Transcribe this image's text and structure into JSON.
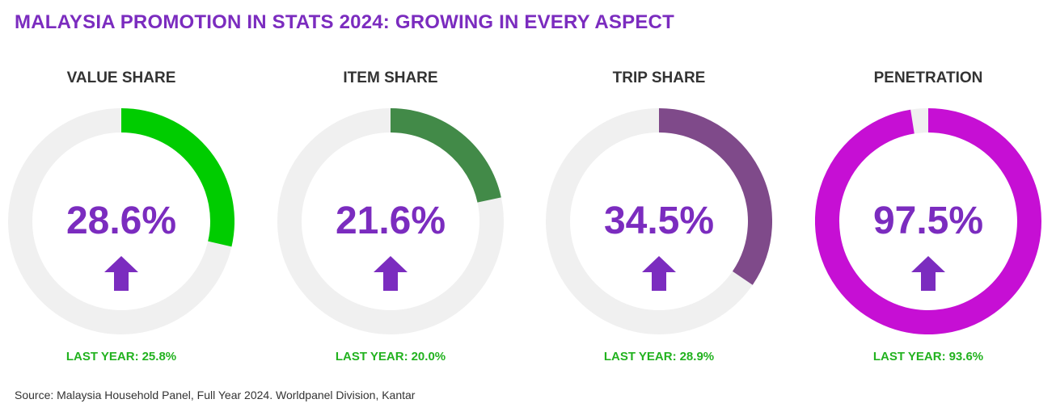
{
  "title": "MALAYSIA PROMOTION IN STATS 2024: GROWING IN EVERY ASPECT",
  "source": "Source: Malaysia Household Panel, Full Year 2024. Worldpanel Division, Kantar",
  "colors": {
    "title": "#7b2cbf",
    "value_text": "#7b2cbf",
    "arrow": "#7b2cbf",
    "last_year_text": "#22b21f",
    "track": "#f0f0f0"
  },
  "chart_data": [
    {
      "type": "pie",
      "title": "VALUE SHARE",
      "value": 28.6,
      "value_label": "28.6%",
      "last_year_label": "LAST YEAR:",
      "last_year_value": "25.8%",
      "color": "#00cc00",
      "trend": "up"
    },
    {
      "type": "pie",
      "title": "ITEM SHARE",
      "value": 21.6,
      "value_label": "21.6%",
      "last_year_label": "LAST YEAR:",
      "last_year_value": "20.0%",
      "color": "#428a48",
      "trend": "up"
    },
    {
      "type": "pie",
      "title": "TRIP SHARE",
      "value": 34.5,
      "value_label": "34.5%",
      "last_year_label": "LAST YEAR:",
      "last_year_value": "28.9%",
      "color": "#7f4a8a",
      "trend": "up"
    },
    {
      "type": "pie",
      "title": "PENETRATION",
      "value": 97.5,
      "value_label": "97.5%",
      "last_year_label": "LAST YEAR:",
      "last_year_value": "93.6%",
      "color": "#c60fd4",
      "trend": "up"
    }
  ]
}
